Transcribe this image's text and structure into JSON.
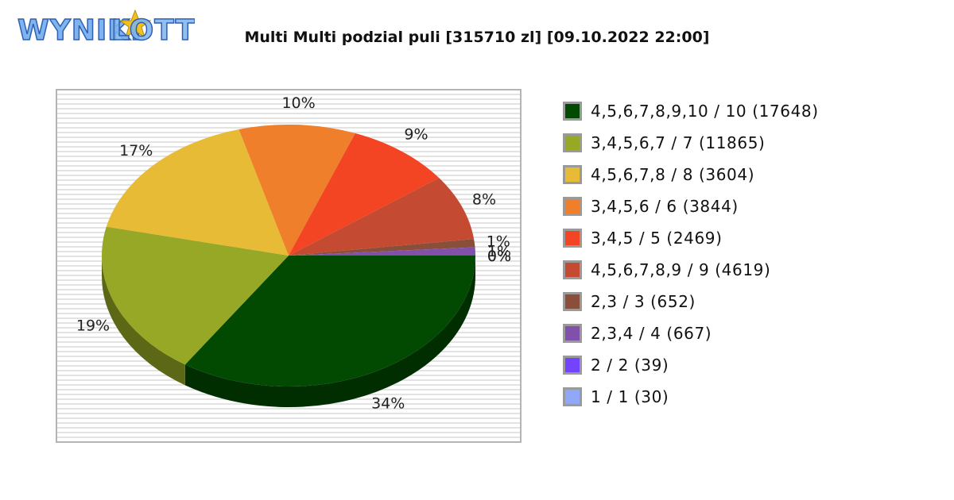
{
  "logo": {
    "text_left": "WYNIKI",
    "text_right": "LOTTO",
    "colors": {
      "text": "#2f5fb3",
      "fill": "#7fb4ee",
      "star": "#f2c21a"
    }
  },
  "chart_data": {
    "type": "pie",
    "title": "Multi Multi podzial puli [315710 zl] [09.10.2022 22:00]",
    "start_angle_deg": 0,
    "direction": "clockwise",
    "legend_position": "right",
    "slices": [
      {
        "label": "4,5,6,7,8,9,10 / 10 (17648)",
        "value": 34,
        "percent_label": "34%",
        "color": "#024a02"
      },
      {
        "label": "3,4,5,6,7 / 7 (11865)",
        "value": 19,
        "percent_label": "19%",
        "color": "#96a825"
      },
      {
        "label": "4,5,6,7,8 / 8 (3604)",
        "value": 17,
        "percent_label": "17%",
        "color": "#e7bb35"
      },
      {
        "label": "3,4,5,6 / 6 (3844)",
        "value": 10,
        "percent_label": "10%",
        "color": "#ef7f2a"
      },
      {
        "label": "3,4,5 / 5 (2469)",
        "value": 9,
        "percent_label": "9%",
        "color": "#f34423"
      },
      {
        "label": "4,5,6,7,8,9 / 9 (4619)",
        "value": 8,
        "percent_label": "8%",
        "color": "#c44b31"
      },
      {
        "label": "2,3 / 3 (652)",
        "value": 1,
        "percent_label": "1%",
        "color": "#8a4f3a"
      },
      {
        "label": "2,3,4 / 4 (667)",
        "value": 1,
        "percent_label": "1%",
        "color": "#8150aa"
      },
      {
        "label": "2 / 2 (39)",
        "value": 0,
        "percent_label": "0%",
        "color": "#7443ff"
      },
      {
        "label": "1 / 1 (30)",
        "value": 0,
        "percent_label": "0%",
        "color": "#91a7f7"
      }
    ]
  }
}
